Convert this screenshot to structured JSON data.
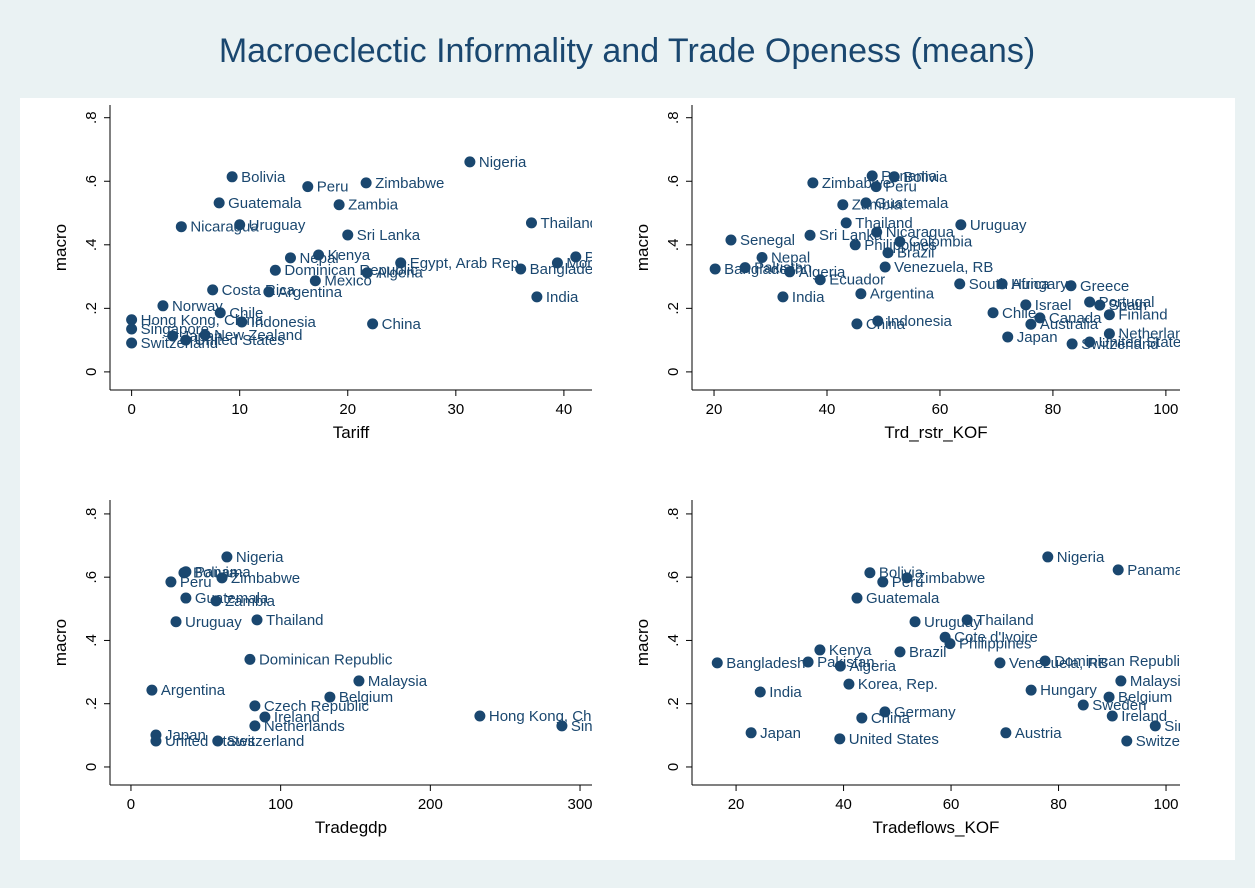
{
  "title": "Macroeclectic Informality and Trade Openess (means)",
  "chart_data": [
    {
      "type": "scatter",
      "x_label": "Tariff",
      "y_label": "macro",
      "color": "#1a476f",
      "xlim": [
        -2,
        42.6
      ],
      "ylim": [
        -0.057,
        0.84
      ],
      "xticks": [
        0,
        10,
        20,
        30,
        40
      ],
      "yticks": [
        0,
        {
          "value": 0.2,
          "label": ".2"
        },
        {
          "value": 0.4,
          "label": ".4"
        },
        {
          "value": 0.6,
          "label": ".6"
        },
        {
          "value": 0.8,
          "label": ".8"
        }
      ],
      "labels": [
        "Nigeria",
        "Bolivia",
        "Peru",
        "Zimbabwe",
        "Guatemala",
        "Zambia",
        "Thailand",
        "Nicaragua",
        "Uruguay",
        "Sri Lanka",
        "Egypt, Arab Rep.",
        "Pakistan",
        "Bangladesh",
        "Morocco",
        "Algeria",
        "Dominican Republic",
        "Kenya",
        "Nepal",
        "Mexico",
        "Argentina",
        "Costa Rica",
        "India",
        "Norway",
        "Chile",
        "Indonesia",
        "China",
        "Hong Kong, China",
        "Singapore",
        "Switzerland",
        "United States",
        "New Zealand",
        "Japan"
      ],
      "x": [
        31.3,
        9.3,
        16.3,
        21.7,
        8.1,
        19.2,
        37.0,
        4.6,
        10.0,
        20.0,
        24.9,
        41.1,
        36.0,
        39.4,
        21.8,
        13.3,
        17.3,
        14.7,
        17.0,
        12.7,
        7.5,
        37.5,
        2.9,
        8.2,
        10.2,
        22.3,
        0,
        0,
        0,
        5.0,
        6.8,
        3.8
      ],
      "y": [
        0.661,
        0.614,
        0.583,
        0.595,
        0.532,
        0.526,
        0.469,
        0.457,
        0.463,
        0.431,
        0.343,
        0.362,
        0.324,
        0.343,
        0.312,
        0.32,
        0.368,
        0.359,
        0.287,
        0.252,
        0.258,
        0.236,
        0.208,
        0.186,
        0.157,
        0.151,
        0.164,
        0.135,
        0.091,
        0.1,
        0.116,
        0.113
      ]
    },
    {
      "type": "scatter",
      "x_label": "Trd_rstr_KOF",
      "y_label": "macro",
      "color": "#1a476f",
      "xlim": [
        16.1,
        102.5
      ],
      "ylim": [
        -0.057,
        0.84
      ],
      "xticks": [
        20,
        40,
        60,
        80,
        100
      ],
      "yticks": [
        0,
        {
          "value": 0.2,
          "label": ".2"
        },
        {
          "value": 0.4,
          "label": ".4"
        },
        {
          "value": 0.6,
          "label": ".6"
        },
        {
          "value": 0.8,
          "label": ".8"
        }
      ],
      "labels": [
        "Panama",
        "Bolivia",
        "Peru",
        "Zimbabwe",
        "Zambia",
        "Guatemala",
        "Thailand",
        "Uruguay",
        "Nicaragua",
        "Sri Lanka",
        "Colombia",
        "Senegal",
        "Philippines",
        "Brazil",
        "Nepal",
        "Venezuela, RB",
        "Ecuador",
        "Argentina",
        "India",
        "South Africa",
        "Greece",
        "Hungary",
        "Israel",
        "Chile",
        "Portugal",
        "Spain",
        "Canada",
        "Finland",
        "Australia",
        "Netherlands",
        "Japan",
        "Switzerland",
        "United States",
        "Indonesia",
        "China",
        "Bangladesh",
        "Pakistan",
        "Algeria"
      ],
      "x": [
        48.0,
        51.9,
        48.7,
        37.5,
        42.8,
        46.9,
        43.4,
        63.7,
        48.8,
        37.0,
        52.9,
        23.0,
        45.0,
        50.8,
        28.5,
        50.3,
        38.8,
        46.0,
        32.2,
        63.5,
        83.2,
        71.0,
        75.2,
        69.4,
        86.5,
        88.3,
        77.7,
        90.0,
        76.1,
        90.0,
        72.0,
        83.4,
        86.5,
        49.0,
        45.3,
        20.2,
        25.5,
        33.4
      ],
      "y": [
        0.617,
        0.614,
        0.583,
        0.595,
        0.526,
        0.532,
        0.469,
        0.463,
        0.44,
        0.43,
        0.41,
        0.415,
        0.4,
        0.375,
        0.36,
        0.33,
        0.29,
        0.246,
        0.236,
        0.277,
        0.271,
        0.277,
        0.211,
        0.186,
        0.22,
        0.21,
        0.17,
        0.18,
        0.15,
        0.12,
        0.11,
        0.088,
        0.094,
        0.16,
        0.151,
        0.324,
        0.328,
        0.315
      ]
    },
    {
      "type": "scatter",
      "x_label": "Tradegdp",
      "y_label": "macro",
      "color": "#1a476f",
      "xlim": [
        -14,
        308
      ],
      "ylim": [
        -0.057,
        0.844
      ],
      "xticks": [
        0,
        100,
        200,
        300
      ],
      "yticks": [
        0,
        {
          "value": 0.2,
          "label": ".2"
        },
        {
          "value": 0.4,
          "label": ".4"
        },
        {
          "value": 0.6,
          "label": ".6"
        },
        {
          "value": 0.8,
          "label": ".8"
        }
      ],
      "labels": [
        "Nigeria",
        "Panama",
        "Bolivia",
        "Peru",
        "Zimbabwe",
        "Guatemala",
        "Zambia",
        "Thailand",
        "Uruguay",
        "Dominican Republic",
        "Malaysia",
        "Belgium",
        "Hong Kong, China",
        "Singapore",
        "Czech Republic",
        "Netherlands",
        "Ireland",
        "Japan",
        "United States",
        "Switzerland",
        "Argentina"
      ],
      "x": [
        64.1,
        36.7,
        35.4,
        26.7,
        60.8,
        36.7,
        56.8,
        84.2,
        30.1,
        79.5,
        152.3,
        132.9,
        233.1,
        287.9,
        82.8,
        82.8,
        89.5,
        16.7,
        16.7,
        58.0,
        14.0
      ],
      "y": [
        0.664,
        0.617,
        0.614,
        0.585,
        0.598,
        0.534,
        0.525,
        0.465,
        0.459,
        0.34,
        0.272,
        0.221,
        0.161,
        0.13,
        0.193,
        0.13,
        0.158,
        0.101,
        0.082,
        0.082,
        0.243
      ]
    },
    {
      "type": "scatter",
      "x_label": "Tradeflows_KOF",
      "y_label": "macro",
      "color": "#1a476f",
      "xlim": [
        11.8,
        102.6
      ],
      "ylim": [
        -0.057,
        0.844
      ],
      "xticks": [
        20,
        40,
        60,
        80,
        100
      ],
      "yticks": [
        0,
        {
          "value": 0.2,
          "label": ".2"
        },
        {
          "value": 0.4,
          "label": ".4"
        },
        {
          "value": 0.6,
          "label": ".6"
        },
        {
          "value": 0.8,
          "label": ".8"
        }
      ],
      "labels": [
        "Nigeria",
        "Panama",
        "Bolivia",
        "Peru",
        "Zimbabwe",
        "Guatemala",
        "Thailand",
        "Uruguay",
        "Cote d'Ivoire",
        "Philippines",
        "Bangladesh",
        "Pakistan",
        "Kenya",
        "Brazil",
        "Algeria",
        "Venezuela, RB",
        "Dominican Republic",
        "Malaysia",
        "Hungary",
        "Belgium",
        "Korea, Rep.",
        "India",
        "Sweden",
        "Ireland",
        "Singapore",
        "Germany",
        "China",
        "Austria",
        "Switzerland",
        "Japan",
        "United States"
      ],
      "x": [
        78.0,
        91.1,
        44.9,
        47.3,
        51.8,
        42.5,
        63.0,
        53.3,
        58.9,
        59.8,
        16.5,
        33.4,
        35.6,
        50.5,
        39.4,
        69.1,
        77.5,
        91.6,
        74.9,
        89.4,
        41.0,
        24.5,
        84.6,
        90.0,
        98.0,
        47.7,
        43.4,
        70.2,
        92.7,
        22.8,
        39.3
      ],
      "y": [
        0.664,
        0.623,
        0.614,
        0.585,
        0.598,
        0.534,
        0.465,
        0.459,
        0.41,
        0.39,
        0.329,
        0.332,
        0.37,
        0.364,
        0.319,
        0.329,
        0.335,
        0.272,
        0.243,
        0.221,
        0.262,
        0.237,
        0.196,
        0.161,
        0.13,
        0.174,
        0.155,
        0.108,
        0.082,
        0.108,
        0.089
      ]
    }
  ]
}
